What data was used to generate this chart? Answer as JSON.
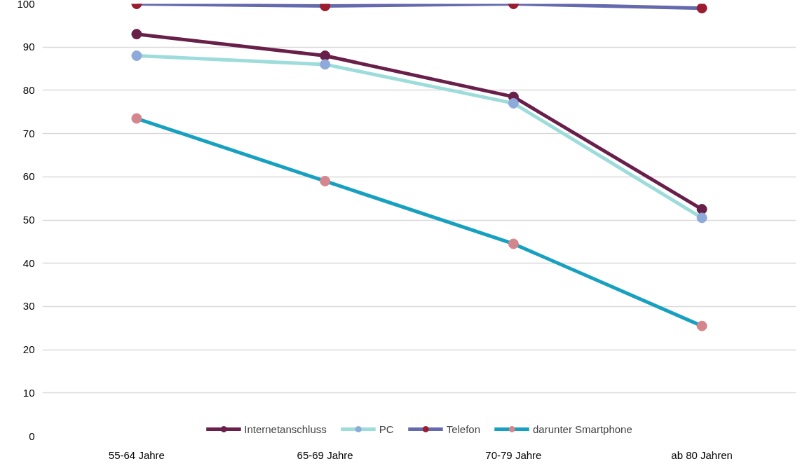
{
  "chart_data": {
    "type": "line",
    "categories": [
      "55-64 Jahre",
      "65-69 Jahre",
      "70-79 Jahre",
      "ab 80 Jahren"
    ],
    "ylim": [
      0,
      100
    ],
    "yticks": [
      0,
      10,
      20,
      30,
      40,
      50,
      60,
      70,
      80,
      90,
      100
    ],
    "grid": "y",
    "legend": "bottom",
    "marker": "circle",
    "line_style": "solid",
    "series": [
      {
        "name": "Internetanschluss",
        "color": "#68204a",
        "colors": [
          "#68204a",
          "#68204a",
          "#68204a",
          "#68204a"
        ],
        "values": [
          93,
          88,
          78.5,
          52.5
        ]
      },
      {
        "name": "PC",
        "color": "#9cdcda",
        "colors": [
          "#8eaadb",
          "#8eaadb",
          "#8eaadb",
          "#8eaadb"
        ],
        "values": [
          88,
          86,
          77,
          50.5
        ]
      },
      {
        "name": "Telefon",
        "color": "#6569ad",
        "colors": [
          "#9b1b30",
          "#9b1b30",
          "#9b1b30",
          "#9b1b30"
        ],
        "values": [
          100,
          99.5,
          100,
          99
        ]
      },
      {
        "name": "darunter Smartphone",
        "color": "#17a0bf",
        "colors": [
          "#d4868e",
          "#d4868e",
          "#d4868e",
          "#d4868e"
        ],
        "values": [
          73.5,
          59,
          44.5,
          25.5
        ]
      }
    ]
  }
}
